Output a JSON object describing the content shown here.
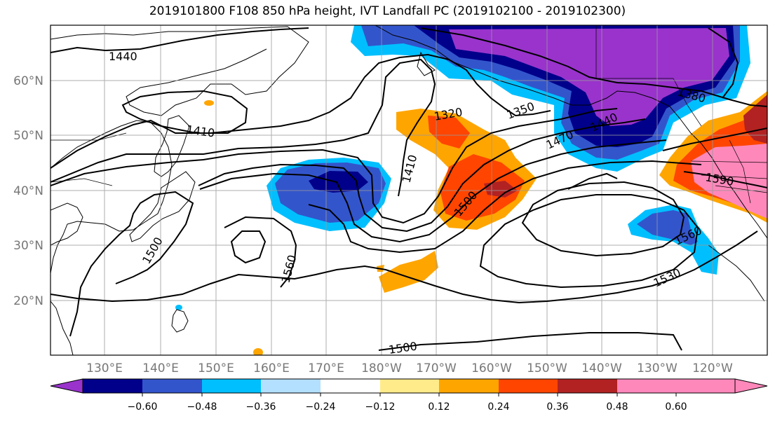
{
  "title": "2019101800 F108 850 hPa height, IVT Landfall PC (2019102100 - 2019102300)",
  "map": {
    "lat_labels": [
      "60°N",
      "50°N",
      "40°N",
      "30°N",
      "20°N"
    ],
    "lon_labels": [
      "130°E",
      "140°E",
      "150°E",
      "160°E",
      "170°E",
      "180°W",
      "170°W",
      "160°W",
      "150°W",
      "140°W",
      "130°W",
      "120°W"
    ],
    "contour_labels": [
      "1440",
      "1410",
      "1500",
      "1560",
      "1410",
      "1320",
      "1350",
      "1440",
      "1470",
      "1500",
      "1380",
      "1590",
      "1560",
      "1530",
      "1500"
    ]
  },
  "colorbar": {
    "colors": [
      "#9933cc",
      "#00008b",
      "#3355cc",
      "#00bfff",
      "#b3e0ff",
      "#ffffff",
      "#ffeb8a",
      "#ffa500",
      "#ff4500",
      "#b22222",
      "#ff88bb"
    ],
    "tick_labels": [
      "−0.60",
      "−0.48",
      "−0.36",
      "−0.24",
      "−0.12",
      "0.12",
      "0.24",
      "0.36",
      "0.48",
      "0.60"
    ]
  }
}
